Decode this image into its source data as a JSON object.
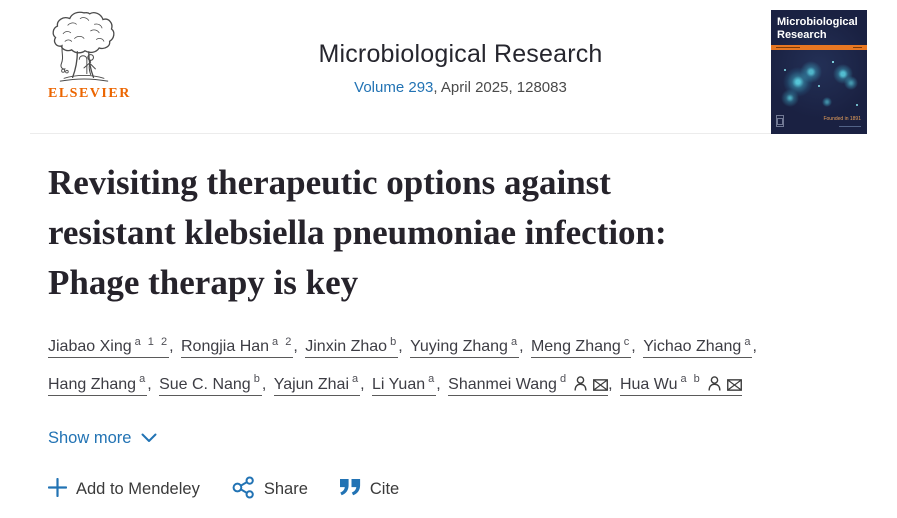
{
  "header": {
    "publisher": "ELSEVIER",
    "journal_title": "Microbiological Research",
    "volume_link": "Volume 293",
    "issue_info": ", April 2025, 128083",
    "cover": {
      "title": "Microbiological Research",
      "founded": "Founded in 1891"
    }
  },
  "article": {
    "title_lines": [
      "Revisiting therapeutic options against",
      "resistant klebsiella pneumoniae infection:",
      "Phage therapy is key"
    ]
  },
  "authors": {
    "rows": [
      [
        {
          "name": "Jiabao Xing",
          "sup": "a 1 2",
          "suffix": ", "
        },
        {
          "name": "Rongjia Han",
          "sup": "a 2",
          "suffix": ", "
        },
        {
          "name": "Jinxin Zhao",
          "sup": "b",
          "suffix": ", "
        },
        {
          "name": "Yuying Zhang",
          "sup": "a",
          "suffix": ", "
        },
        {
          "name": "Meng Zhang",
          "sup": "c",
          "suffix": ", "
        },
        {
          "name": "Yichao Zhang",
          "sup": "a",
          "suffix": ","
        }
      ],
      [
        {
          "name": "Hang Zhang",
          "sup": "a",
          "suffix": ", "
        },
        {
          "name": "Sue C. Nang",
          "sup": "b",
          "suffix": ", "
        },
        {
          "name": "Yajun Zhai",
          "sup": "a",
          "suffix": ", "
        },
        {
          "name": "Li Yuan",
          "sup": "a",
          "suffix": ", "
        },
        {
          "name": "Shanmei Wang",
          "sup": "d",
          "icons": [
            "person-icon",
            "envelope-icon"
          ],
          "suffix": ", "
        },
        {
          "name": "Hua Wu",
          "sup": "a b",
          "icons": [
            "person-icon",
            "envelope-icon"
          ],
          "suffix": ""
        }
      ]
    ]
  },
  "actions": {
    "show_more": "Show more",
    "add_to_mendeley": "Add to Mendeley",
    "share": "Share",
    "cite": "Cite"
  },
  "colors": {
    "link_blue": "#2273b4",
    "elsevier_orange": "#ec6500",
    "cover_navy": "#1a2142",
    "cover_cyan": "#41d0e3",
    "cover_bar_orange": "#e87722"
  }
}
